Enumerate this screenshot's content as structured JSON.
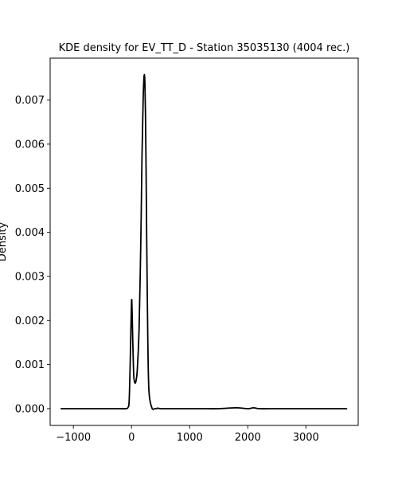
{
  "chart_data": {
    "type": "line",
    "title": "KDE density for EV_TT_D - Station 35035130 (4004 rec.)",
    "xlabel": "",
    "ylabel": "Density",
    "xlim": [
      -1400,
      3900
    ],
    "ylim": [
      -0.00038,
      0.00795
    ],
    "grid": false,
    "legend": "none",
    "x_ticks": [
      -1000,
      0,
      1000,
      2000,
      3000
    ],
    "x_tick_labels": [
      "−1000",
      "0",
      "1000",
      "2000",
      "3000"
    ],
    "y_ticks": [
      0.0,
      0.001,
      0.002,
      0.003,
      0.004,
      0.005,
      0.006,
      0.007
    ],
    "y_tick_labels": [
      "0.000",
      "0.001",
      "0.002",
      "0.003",
      "0.004",
      "0.005",
      "0.006",
      "0.007"
    ],
    "series": [
      {
        "color": "#000000",
        "x": [
          -1220,
          -500,
          -200,
          -100,
          -60,
          -40,
          -20,
          0,
          10,
          20,
          30,
          40,
          60,
          80,
          100,
          130,
          160,
          180,
          200,
          210,
          220,
          230,
          240,
          250,
          260,
          280,
          300,
          350,
          400,
          450,
          500,
          600,
          800,
          1000,
          1200,
          1500,
          1800,
          2000,
          2100,
          2200,
          2500,
          3000,
          3500,
          3710
        ],
        "y": [
          0.0,
          0.0,
          0.0,
          0.0,
          3e-05,
          0.0002,
          0.0012,
          0.00242,
          0.0022,
          0.0016,
          0.0011,
          0.00072,
          0.00058,
          0.00065,
          0.0009,
          0.0018,
          0.0038,
          0.0057,
          0.007,
          0.0074,
          0.00758,
          0.0074,
          0.0067,
          0.0055,
          0.004,
          0.0016,
          0.0004,
          2e-05,
          0.0,
          1e-05,
          0.0,
          0.0,
          0.0,
          0.0,
          0.0,
          0.0,
          2e-05,
          0.0,
          2e-05,
          0.0,
          0.0,
          0.0,
          0.0,
          0.0
        ]
      }
    ]
  }
}
